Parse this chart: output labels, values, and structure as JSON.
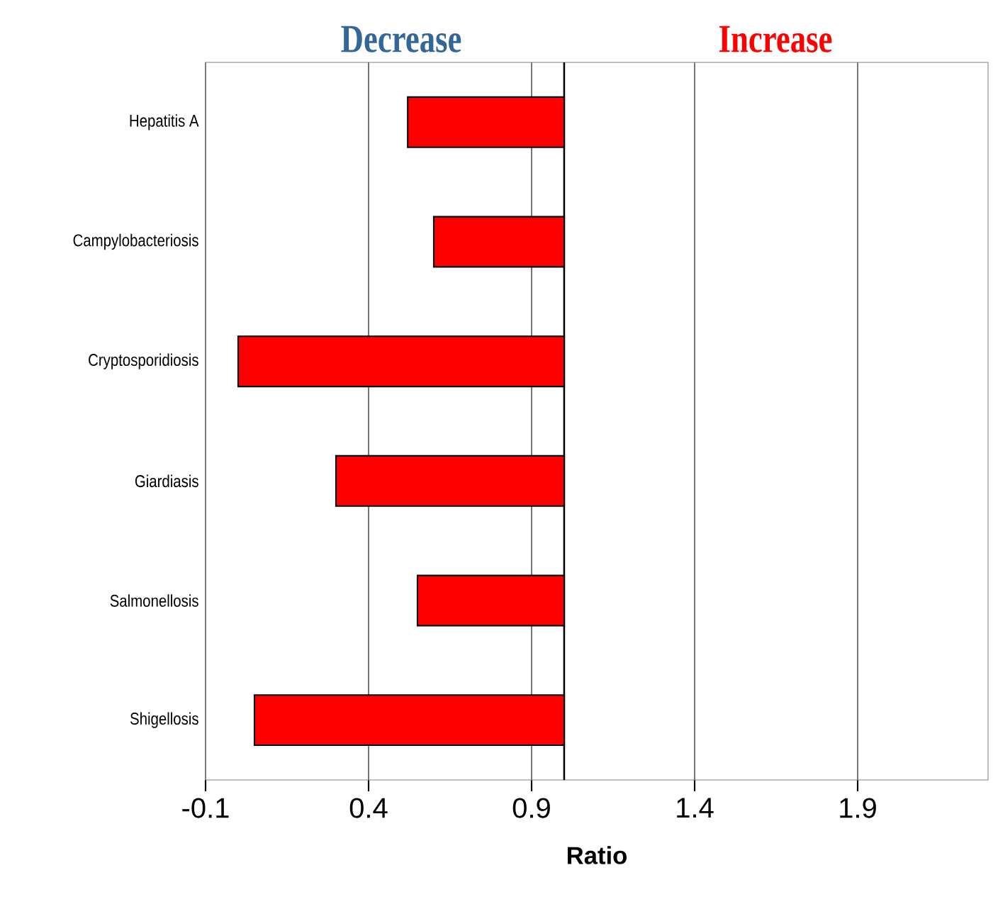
{
  "chart_data": {
    "type": "bar",
    "orientation": "horizontal",
    "categories": [
      "Hepatitis A",
      "Campylobacteriosis",
      "Cryptosporidiosis",
      "Giardiasis",
      "Salmonellosis",
      "Shigellosis"
    ],
    "base": [
      1,
      1,
      1,
      1,
      1,
      1
    ],
    "values": [
      -0.48,
      -0.4,
      -1.0,
      -0.7,
      -0.45,
      -0.95
    ],
    "color": "#ff0000",
    "xlabel": "Ratio",
    "xlim": [
      -0.1,
      2.3
    ],
    "xticks": [
      -0.1,
      0.4,
      0.9,
      1.4,
      1.9
    ],
    "grid": "x",
    "ref_lines": [
      {
        "axis": "x",
        "value": 1,
        "color": "#000000"
      }
    ],
    "annotations": [
      "Decrease",
      "Increase"
    ]
  }
}
